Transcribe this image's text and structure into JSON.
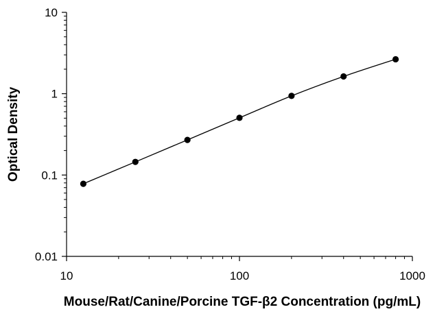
{
  "chart_data": {
    "type": "scatter",
    "title": "",
    "xlabel": "Mouse/Rat/Canine/Porcine TGF-β2 Concentration (pg/mL)",
    "ylabel": "Optical Density",
    "xscale": "log",
    "yscale": "log",
    "xlim": [
      10,
      1000
    ],
    "ylim": [
      0.01,
      10
    ],
    "x_ticks": [
      "10",
      "100",
      "1000"
    ],
    "y_ticks": [
      "0.01",
      "0.1",
      "1",
      "10"
    ],
    "grid": false,
    "legend": "none",
    "fit_line": "smooth curve through points",
    "series": [
      {
        "x": [
          12.5,
          25,
          50,
          100,
          200,
          400,
          800
        ],
        "y": [
          0.078,
          0.145,
          0.27,
          0.505,
          0.94,
          1.63,
          2.65
        ],
        "color": "#000000",
        "marker": "filled-circle"
      }
    ]
  }
}
